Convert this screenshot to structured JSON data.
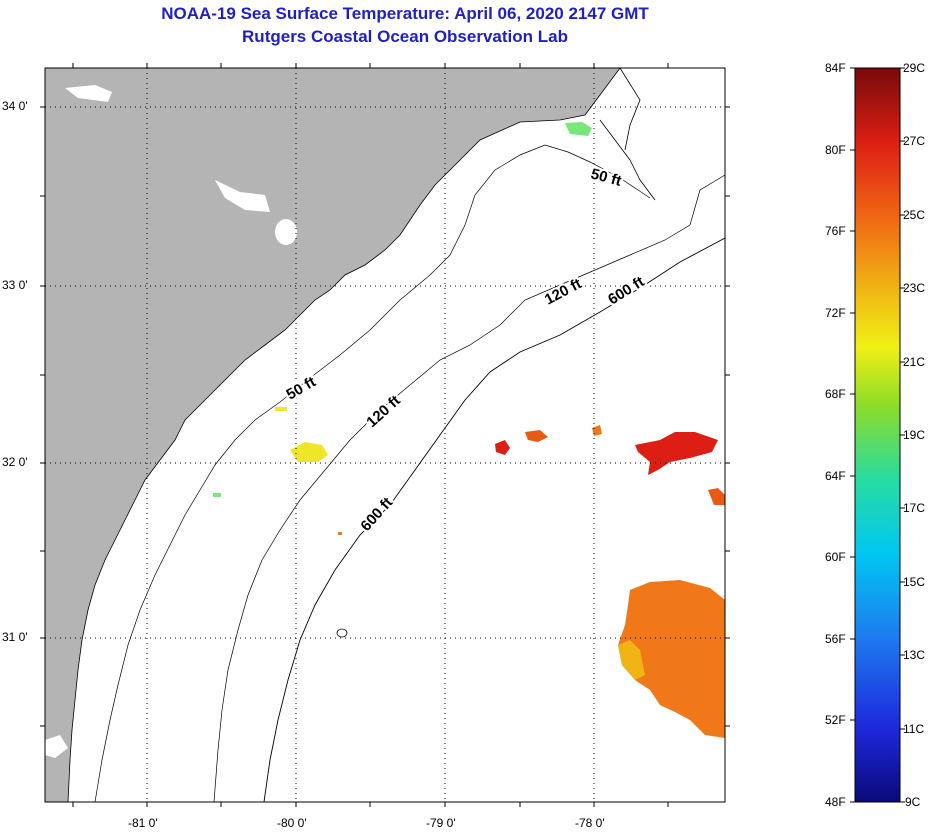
{
  "title": {
    "line1": "NOAA-19 Sea Surface Temperature:  April 06, 2020 2147 GMT",
    "line2": "Rutgers Coastal Ocean Observation Lab"
  },
  "axes": {
    "lat_labels": [
      "34 0'",
      "33 0'",
      "32 0'",
      "31 0'"
    ],
    "lon_labels": [
      "-81 0'",
      "-80 0'",
      "-79 0'",
      "-78 0'"
    ]
  },
  "contours": {
    "label_50": "50 ft",
    "label_120": "120 ft",
    "label_600": "600 ft"
  },
  "colorbar": {
    "fahrenheit": [
      "84F",
      "80F",
      "76F",
      "72F",
      "68F",
      "64F",
      "60F",
      "56F",
      "52F",
      "48F"
    ],
    "celsius": [
      "29C",
      "27C",
      "25C",
      "23C",
      "21C",
      "19C",
      "17C",
      "15C",
      "13C",
      "11C",
      "9C"
    ]
  },
  "colors": {
    "land": "#b4b4b4",
    "ocean_nodata": "#ffffff",
    "title": "#1f1fc8",
    "sst_warm": "#f07818",
    "sst_hot": "#dc1e14",
    "sst_mild": "#f0e628"
  }
}
